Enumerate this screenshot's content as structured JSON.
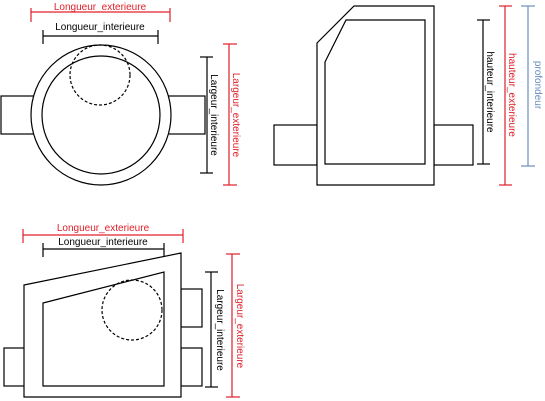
{
  "colors": {
    "exterior": "#e0202a",
    "interior": "#000000",
    "depth": "#6c8ebf",
    "outline": "#000000"
  },
  "views": {
    "top": {
      "longueur_ext": "Longueur_exterieure",
      "longueur_int": "Longueur_interieure",
      "largeur_int": "Largeur_interieure",
      "largeur_ext": "Largeur_exterieure"
    },
    "side": {
      "hauteur_int": "hauteur_interieure",
      "hauteur_ext": "hauteur_exterieure",
      "profondeur": "profondeur"
    },
    "bottom": {
      "longueur_ext": "Longueur_exterieure",
      "longueur_int": "Longueur_interieure",
      "largeur_int": "Largeur_interieure",
      "largeur_ext": "Largeur_exterieure"
    }
  }
}
